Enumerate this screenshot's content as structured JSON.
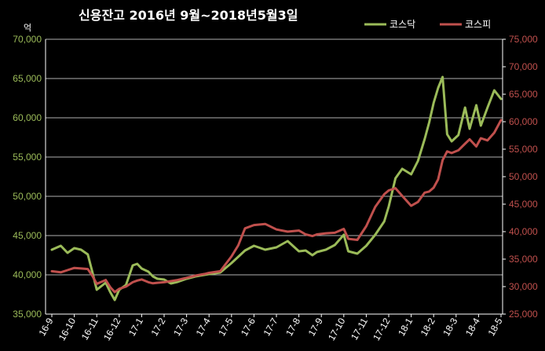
{
  "chart_data": {
    "type": "line",
    "title": "신용잔고 2016년 9월~2018년5월3일",
    "ylabel": "억",
    "ylim_left": [
      35000,
      70000
    ],
    "ylim_right": [
      25000,
      75000
    ],
    "yticks_left": [
      "35,000",
      "40,000",
      "45,000",
      "50,000",
      "55,000",
      "60,000",
      "65,000",
      "70,000"
    ],
    "yticks_right": [
      "25,000",
      "30,000",
      "35,000",
      "40,000",
      "45,000",
      "50,000",
      "55,000",
      "60,000",
      "65,000",
      "70,000",
      "75,000"
    ],
    "x_labels": [
      "16-9",
      "16-10",
      "16-11",
      "16-12",
      "17-1",
      "17-2",
      "17-3",
      "17-4",
      "17-5",
      "17-6",
      "17-7",
      "17-8",
      "17-9",
      "17-10",
      "17-11",
      "17-12",
      "18-1",
      "18-2",
      "18-3",
      "18-4",
      "18-5"
    ],
    "grid": true,
    "legend_position": "top-right",
    "colors": {
      "kosdaq": "#9bbb59",
      "kospi": "#c0504d",
      "grid": "#b0b0b0",
      "axis": "#ffffff"
    },
    "series": [
      {
        "name": "코스닥",
        "axis": "left",
        "t": [
          0,
          0.4,
          0.7,
          1.0,
          1.3,
          1.6,
          1.8,
          2.0,
          2.4,
          2.6,
          2.8,
          3.0,
          3.3,
          3.6,
          3.8,
          4.0,
          4.3,
          4.5,
          4.7,
          5.0,
          5.3,
          5.6,
          6.0,
          6.4,
          6.8,
          7.0,
          7.5,
          8.0,
          8.3,
          8.6,
          9.0,
          9.5,
          10.0,
          10.5,
          11.0,
          11.3,
          11.6,
          11.8,
          12.2,
          12.6,
          13.0,
          13.2,
          13.6,
          14.0,
          14.4,
          14.8,
          15.0,
          15.3,
          15.6,
          16.0,
          16.3,
          16.6,
          16.8,
          17.0,
          17.2,
          17.4,
          17.6,
          17.8,
          18.1,
          18.4,
          18.6,
          18.9,
          19.1,
          19.4,
          19.7,
          20.0
        ],
        "values": [
          43200,
          43700,
          42800,
          43400,
          43200,
          42600,
          40400,
          38100,
          39000,
          37800,
          36800,
          38100,
          38700,
          41200,
          41400,
          40800,
          40400,
          39800,
          39500,
          39400,
          38900,
          39100,
          39500,
          39800,
          40000,
          40100,
          40300,
          41500,
          42300,
          43100,
          43700,
          43200,
          43500,
          44300,
          43000,
          43100,
          42500,
          42900,
          43200,
          43800,
          45100,
          43000,
          42700,
          43700,
          45100,
          46800,
          48700,
          52300,
          53500,
          52800,
          54500,
          57300,
          59400,
          61900,
          63800,
          65200,
          57900,
          57000,
          57800,
          61300,
          58600,
          61600,
          59000,
          61300,
          63500,
          62400
        ]
      },
      {
        "name": "코스피",
        "axis": "right",
        "t": [
          0,
          0.4,
          0.7,
          1.0,
          1.3,
          1.6,
          1.8,
          2.0,
          2.4,
          2.6,
          2.8,
          3.0,
          3.3,
          3.6,
          3.8,
          4.0,
          4.3,
          4.5,
          4.7,
          5.0,
          5.3,
          5.6,
          6.0,
          6.4,
          6.8,
          7.0,
          7.5,
          8.0,
          8.3,
          8.6,
          9.0,
          9.5,
          10.0,
          10.5,
          11.0,
          11.3,
          11.6,
          11.8,
          12.2,
          12.6,
          13.0,
          13.2,
          13.6,
          14.0,
          14.4,
          14.8,
          15.0,
          15.3,
          15.6,
          16.0,
          16.3,
          16.6,
          16.8,
          17.0,
          17.2,
          17.4,
          17.6,
          17.8,
          18.1,
          18.4,
          18.6,
          18.9,
          19.1,
          19.4,
          19.7,
          20.0
        ],
        "values": [
          32800,
          32600,
          33000,
          33400,
          33300,
          33200,
          32000,
          30500,
          31200,
          29900,
          29000,
          29600,
          30000,
          30800,
          31100,
          31300,
          30800,
          30600,
          30700,
          30800,
          31000,
          31200,
          31600,
          32000,
          32300,
          32500,
          32800,
          35500,
          37500,
          40600,
          41200,
          41400,
          40400,
          40000,
          40200,
          39500,
          39200,
          39500,
          39700,
          39800,
          40500,
          38700,
          38500,
          41000,
          44500,
          46800,
          47500,
          47900,
          46500,
          44700,
          45400,
          47100,
          47300,
          48000,
          49500,
          53000,
          54600,
          54300,
          54800,
          56000,
          56800,
          55500,
          57000,
          56600,
          58000,
          60300
        ]
      }
    ]
  }
}
